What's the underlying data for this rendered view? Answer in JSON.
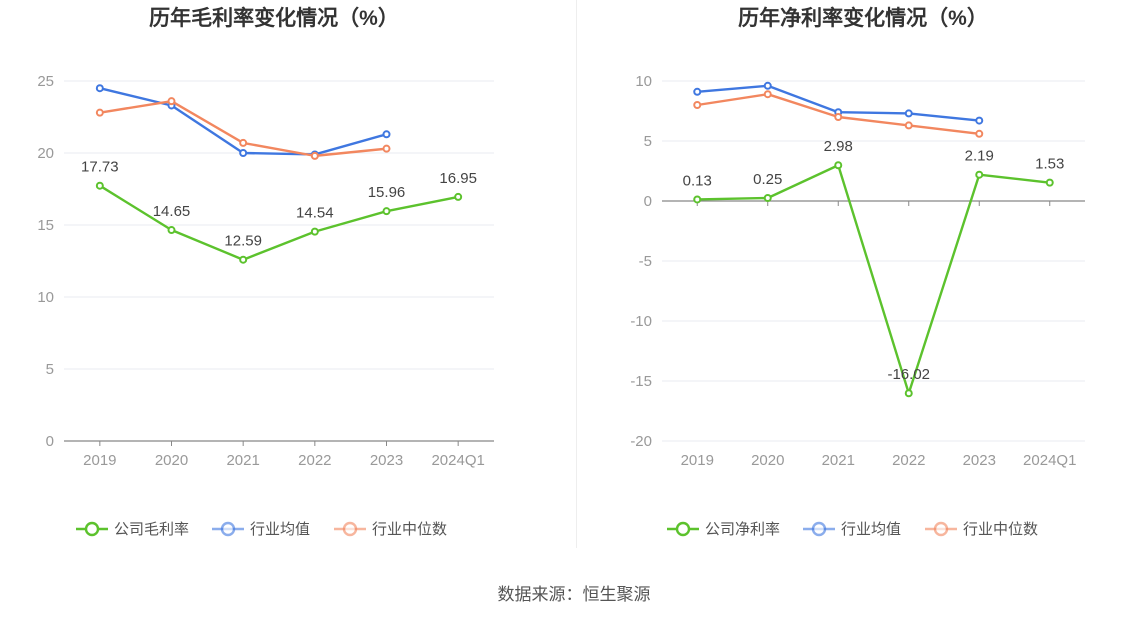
{
  "source": "数据来源：恒生聚源",
  "colors": {
    "company": "#5cc22d",
    "avg": "#3f77e0",
    "median": "#f2875f",
    "grid": "#e8ebf2",
    "axis": "#888888"
  },
  "chart_data": [
    {
      "type": "line",
      "title": "历年毛利率变化情况（%）",
      "categories": [
        "2019",
        "2020",
        "2021",
        "2022",
        "2023",
        "2024Q1"
      ],
      "ylim": [
        0,
        25
      ],
      "yticks": [
        0,
        5,
        10,
        15,
        20,
        25
      ],
      "grid": true,
      "legend_position": "bottom",
      "series": [
        {
          "name": "公司毛利率",
          "key": "company",
          "values": [
            17.73,
            14.65,
            12.59,
            14.54,
            15.96,
            16.95
          ],
          "labels": [
            "17.73",
            "14.65",
            "12.59",
            "14.54",
            "15.96",
            "16.95"
          ]
        },
        {
          "name": "行业均值",
          "key": "avg",
          "values": [
            24.5,
            23.3,
            20.0,
            19.9,
            21.3,
            null
          ]
        },
        {
          "name": "行业中位数",
          "key": "median",
          "values": [
            22.8,
            23.6,
            20.7,
            19.8,
            20.3,
            null
          ]
        }
      ]
    },
    {
      "type": "line",
      "title": "历年净利率变化情况（%）",
      "categories": [
        "2019",
        "2020",
        "2021",
        "2022",
        "2023",
        "2024Q1"
      ],
      "ylim": [
        -20,
        10
      ],
      "yticks": [
        -20,
        -15,
        -10,
        -5,
        0,
        5,
        10
      ],
      "grid": true,
      "legend_position": "bottom",
      "series": [
        {
          "name": "公司净利率",
          "key": "company",
          "values": [
            0.13,
            0.25,
            2.98,
            -16.02,
            2.19,
            1.53
          ],
          "labels": [
            "0.13",
            "0.25",
            "2.98",
            "-16.02",
            "2.19",
            "1.53"
          ]
        },
        {
          "name": "行业均值",
          "key": "avg",
          "values": [
            9.1,
            9.6,
            7.4,
            7.3,
            6.7,
            null
          ]
        },
        {
          "name": "行业中位数",
          "key": "median",
          "values": [
            8.0,
            8.9,
            7.0,
            6.3,
            5.6,
            null
          ]
        }
      ]
    }
  ]
}
